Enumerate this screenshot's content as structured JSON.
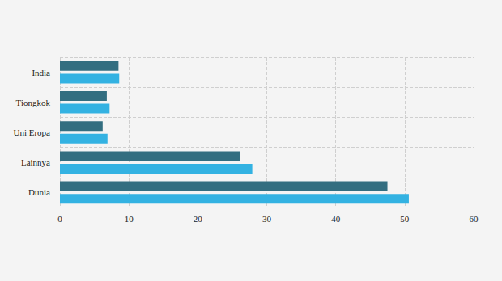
{
  "chart_data": {
    "type": "bar",
    "orientation": "horizontal",
    "categories": [
      "India",
      "Tiongkok",
      "Uni Eropa",
      "Lainnya",
      "Dunia"
    ],
    "series": [
      {
        "color": "#336e80",
        "values": [
          8.5,
          6.8,
          6.2,
          26.1,
          47.5
        ]
      },
      {
        "color": "#33b2e2",
        "values": [
          8.6,
          7.2,
          6.9,
          27.9,
          50.6
        ]
      }
    ],
    "xlim": [
      0,
      60
    ],
    "xticks": [
      0,
      10,
      20,
      30,
      40,
      50,
      60
    ],
    "grid": true
  }
}
